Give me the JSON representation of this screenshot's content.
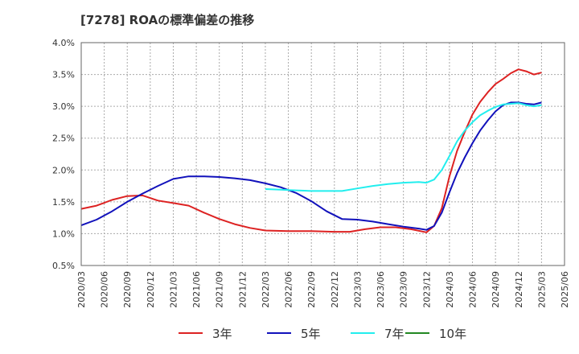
{
  "title": "[7278]  ROAの標準偏差の推移",
  "chart_data": {
    "type": "line",
    "title": "[7278]  ROAの標準偏差の推移",
    "xlabel": "",
    "ylabel": "",
    "x_ticks": [
      "2020/03",
      "2020/06",
      "2020/09",
      "2020/12",
      "2021/03",
      "2021/06",
      "2021/09",
      "2021/12",
      "2022/03",
      "2022/06",
      "2022/09",
      "2022/12",
      "2023/03",
      "2023/06",
      "2023/09",
      "2023/12",
      "2024/03",
      "2024/06",
      "2024/09",
      "2024/12",
      "2025/03",
      "2025/06"
    ],
    "y_ticks": [
      "0.5%",
      "1.0%",
      "1.5%",
      "2.0%",
      "2.5%",
      "3.0%",
      "3.5%",
      "4.0%"
    ],
    "ylim": [
      0.5,
      4.0
    ],
    "grid": true,
    "legend_position": "bottom",
    "series": [
      {
        "name": "3年",
        "color": "#dd2222",
        "points": [
          [
            "2020/03",
            1.39
          ],
          [
            "2020/05",
            1.44
          ],
          [
            "2020/07",
            1.53
          ],
          [
            "2020/09",
            1.59
          ],
          [
            "2020/11",
            1.6
          ],
          [
            "2021/01",
            1.52
          ],
          [
            "2021/03",
            1.48
          ],
          [
            "2021/05",
            1.44
          ],
          [
            "2021/07",
            1.33
          ],
          [
            "2021/09",
            1.23
          ],
          [
            "2021/11",
            1.15
          ],
          [
            "2022/01",
            1.09
          ],
          [
            "2022/03",
            1.05
          ],
          [
            "2022/06",
            1.04
          ],
          [
            "2022/09",
            1.04
          ],
          [
            "2022/12",
            1.03
          ],
          [
            "2023/02",
            1.03
          ],
          [
            "2023/04",
            1.07
          ],
          [
            "2023/06",
            1.1
          ],
          [
            "2023/08",
            1.1
          ],
          [
            "2023/10",
            1.07
          ],
          [
            "2023/12",
            1.02
          ],
          [
            "2024/01",
            1.12
          ],
          [
            "2024/02",
            1.4
          ],
          [
            "2024/03",
            1.9
          ],
          [
            "2024/04",
            2.3
          ],
          [
            "2024/05",
            2.6
          ],
          [
            "2024/06",
            2.87
          ],
          [
            "2024/07",
            3.07
          ],
          [
            "2024/08",
            3.22
          ],
          [
            "2024/09",
            3.35
          ],
          [
            "2024/10",
            3.43
          ],
          [
            "2024/11",
            3.52
          ],
          [
            "2024/12",
            3.58
          ],
          [
            "2025/01",
            3.55
          ],
          [
            "2025/02",
            3.5
          ],
          [
            "2025/03",
            3.53
          ]
        ]
      },
      {
        "name": "5年",
        "color": "#1111bb",
        "points": [
          [
            "2020/03",
            1.13
          ],
          [
            "2020/05",
            1.22
          ],
          [
            "2020/07",
            1.35
          ],
          [
            "2020/09",
            1.5
          ],
          [
            "2020/11",
            1.63
          ],
          [
            "2021/01",
            1.75
          ],
          [
            "2021/03",
            1.86
          ],
          [
            "2021/05",
            1.9
          ],
          [
            "2021/07",
            1.9
          ],
          [
            "2021/09",
            1.89
          ],
          [
            "2021/11",
            1.87
          ],
          [
            "2022/01",
            1.84
          ],
          [
            "2022/03",
            1.79
          ],
          [
            "2022/05",
            1.73
          ],
          [
            "2022/07",
            1.64
          ],
          [
            "2022/09",
            1.51
          ],
          [
            "2022/11",
            1.35
          ],
          [
            "2023/01",
            1.23
          ],
          [
            "2023/03",
            1.22
          ],
          [
            "2023/05",
            1.19
          ],
          [
            "2023/07",
            1.15
          ],
          [
            "2023/09",
            1.11
          ],
          [
            "2023/11",
            1.08
          ],
          [
            "2023/12",
            1.06
          ],
          [
            "2024/01",
            1.12
          ],
          [
            "2024/02",
            1.33
          ],
          [
            "2024/03",
            1.65
          ],
          [
            "2024/04",
            1.95
          ],
          [
            "2024/05",
            2.2
          ],
          [
            "2024/06",
            2.42
          ],
          [
            "2024/07",
            2.62
          ],
          [
            "2024/08",
            2.78
          ],
          [
            "2024/09",
            2.92
          ],
          [
            "2024/10",
            3.02
          ],
          [
            "2024/11",
            3.06
          ],
          [
            "2024/12",
            3.06
          ],
          [
            "2025/01",
            3.04
          ],
          [
            "2025/02",
            3.03
          ],
          [
            "2025/03",
            3.06
          ]
        ]
      },
      {
        "name": "7年",
        "color": "#22eeee",
        "points": [
          [
            "2022/03",
            1.7
          ],
          [
            "2022/05",
            1.69
          ],
          [
            "2022/07",
            1.68
          ],
          [
            "2022/09",
            1.67
          ],
          [
            "2022/11",
            1.67
          ],
          [
            "2023/01",
            1.67
          ],
          [
            "2023/03",
            1.71
          ],
          [
            "2023/05",
            1.75
          ],
          [
            "2023/07",
            1.78
          ],
          [
            "2023/09",
            1.8
          ],
          [
            "2023/11",
            1.81
          ],
          [
            "2023/12",
            1.8
          ],
          [
            "2024/01",
            1.85
          ],
          [
            "2024/02",
            2.0
          ],
          [
            "2024/03",
            2.22
          ],
          [
            "2024/04",
            2.45
          ],
          [
            "2024/05",
            2.62
          ],
          [
            "2024/06",
            2.75
          ],
          [
            "2024/07",
            2.86
          ],
          [
            "2024/08",
            2.93
          ],
          [
            "2024/09",
            2.99
          ],
          [
            "2024/10",
            3.03
          ],
          [
            "2024/11",
            3.04
          ],
          [
            "2024/12",
            3.05
          ],
          [
            "2025/01",
            3.02
          ],
          [
            "2025/02",
            3.0
          ],
          [
            "2025/03",
            3.02
          ]
        ]
      },
      {
        "name": "10年",
        "color": "#228822",
        "points": []
      }
    ]
  }
}
